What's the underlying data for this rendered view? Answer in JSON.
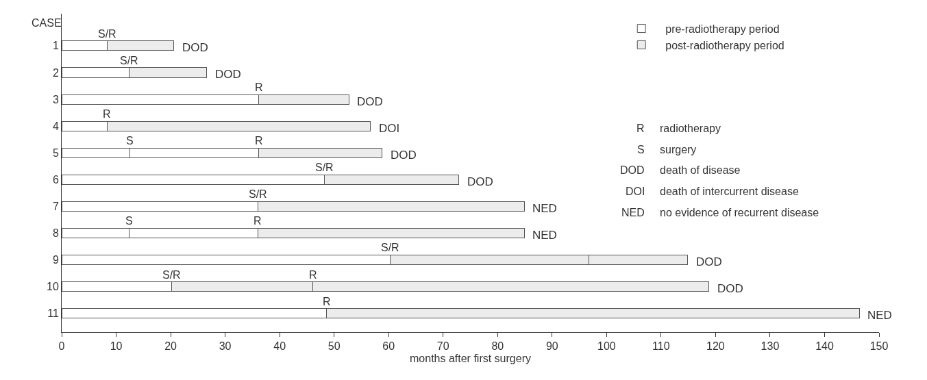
{
  "chart_data": {
    "type": "bar",
    "orientation": "horizontal",
    "stacked": true,
    "ylabel": "CASE",
    "xlabel": "months after first surgery",
    "categories": [
      "1",
      "2",
      "3",
      "4",
      "5",
      "6",
      "7",
      "8",
      "9",
      "10",
      "11"
    ],
    "series": [
      {
        "name": "pre-radiotherapy period",
        "color": "#ffffff",
        "values": [
          8.4,
          12.4,
          36.2,
          8.3,
          12.5,
          48.2,
          36.0,
          12.4,
          60.3,
          20.2,
          48.6
        ]
      },
      {
        "color": "#ffffff",
        "values": [
          null,
          null,
          null,
          null,
          23.7,
          null,
          null,
          23.6,
          null,
          null,
          null
        ]
      },
      {
        "name": "post-radiotherapy period",
        "color": "#ececec",
        "values": [
          12.2,
          14.2,
          16.5,
          48.4,
          22.6,
          24.7,
          48.9,
          48.9,
          36.4,
          25.9,
          97.8
        ]
      },
      {
        "color": "#ececec",
        "values": [
          null,
          null,
          null,
          null,
          null,
          null,
          null,
          null,
          18.2,
          72.7,
          null
        ]
      }
    ],
    "xlim": [
      0,
      150
    ],
    "xticks": [
      0,
      10,
      20,
      30,
      40,
      50,
      60,
      70,
      80,
      90,
      100,
      110,
      120,
      130,
      140,
      150
    ],
    "legend": "top right",
    "annotations": [
      {
        "text": "S/R",
        "x": 8.4,
        "y": "1"
      },
      {
        "text": "DOD",
        "x": 20.6,
        "y": "1"
      },
      {
        "text": "S/R",
        "x": 12.4,
        "y": "2"
      },
      {
        "text": "DOD",
        "x": 26.6,
        "y": "2"
      },
      {
        "text": "R",
        "x": 36.2,
        "y": "3"
      },
      {
        "text": "DOD",
        "x": 52.7,
        "y": "3"
      },
      {
        "text": "R",
        "x": 8.3,
        "y": "4"
      },
      {
        "text": "DOI",
        "x": 56.7,
        "y": "4"
      },
      {
        "text": "S",
        "x": 12.5,
        "y": "5"
      },
      {
        "text": "R",
        "x": 36.2,
        "y": "5"
      },
      {
        "text": "DOD",
        "x": 58.8,
        "y": "5"
      },
      {
        "text": "S/R",
        "x": 48.2,
        "y": "6"
      },
      {
        "text": "DOD",
        "x": 72.9,
        "y": "6"
      },
      {
        "text": "S/R",
        "x": 36.0,
        "y": "7"
      },
      {
        "text": "NED",
        "x": 84.9,
        "y": "7"
      },
      {
        "text": "S",
        "x": 12.4,
        "y": "8"
      },
      {
        "text": "R",
        "x": 36.0,
        "y": "8"
      },
      {
        "text": "NED",
        "x": 84.9,
        "y": "8"
      },
      {
        "text": "S/R",
        "x": 60.3,
        "y": "9"
      },
      {
        "text": "DOD",
        "x": 114.9,
        "y": "9"
      },
      {
        "text": "S/R",
        "x": 20.2,
        "y": "10"
      },
      {
        "text": "R",
        "x": 46.1,
        "y": "10"
      },
      {
        "text": "DOD",
        "x": 118.8,
        "y": "10"
      },
      {
        "text": "R",
        "x": 48.6,
        "y": "11"
      },
      {
        "text": "NED",
        "x": 146.4,
        "y": "11"
      },
      "R radiotherapy",
      "S surgery",
      "DOD death of disease",
      "DOI death of intercurrent disease",
      "NED no evidence of recurrent disease"
    ]
  }
}
